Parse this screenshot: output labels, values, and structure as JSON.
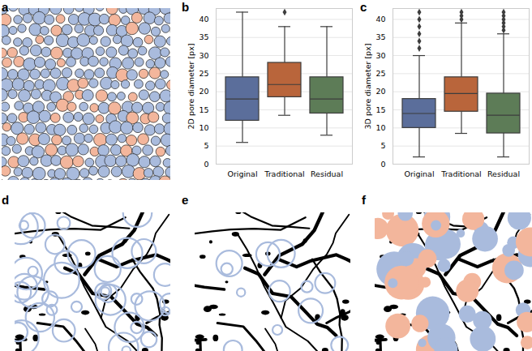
{
  "chart_data": [
    {
      "type": "boxplot",
      "panel": "b",
      "ylabel": "2D pore diameter [px]",
      "categories": [
        "Original",
        "Traditional",
        "Residual"
      ],
      "colors": [
        "#5b6e9b",
        "#b9653b",
        "#5d7c57"
      ],
      "min": [
        6,
        13.5,
        8
      ],
      "q1": [
        12,
        18.5,
        14
      ],
      "median": [
        18,
        22,
        18
      ],
      "q3": [
        24,
        28,
        24
      ],
      "max": [
        42,
        38,
        38
      ],
      "outliers": [
        [],
        [
          42
        ],
        []
      ],
      "ylim": [
        0,
        43
      ],
      "yticks": [
        0,
        5,
        10,
        15,
        20,
        25,
        30,
        35,
        40
      ],
      "grid": true
    },
    {
      "type": "boxplot",
      "panel": "c",
      "ylabel": "3D pore diameter [px]",
      "categories": [
        "Original",
        "Traditional",
        "Residual"
      ],
      "colors": [
        "#5b6e9b",
        "#b9653b",
        "#5d7c57"
      ],
      "min": [
        2,
        8.5,
        2
      ],
      "q1": [
        10,
        14.5,
        8.5
      ],
      "median": [
        14,
        19.5,
        13.5
      ],
      "q3": [
        18,
        24,
        19.5
      ],
      "max": [
        30,
        39,
        36
      ],
      "outliers": [
        [
          32,
          34,
          36,
          38,
          40,
          42
        ],
        [
          40,
          41,
          42
        ],
        [
          37,
          38,
          39,
          40,
          41,
          42
        ]
      ],
      "ylim": [
        0,
        43
      ],
      "yticks": [
        0,
        5,
        10,
        15,
        20,
        25,
        30,
        35,
        40
      ],
      "grid": true
    }
  ],
  "images": [
    {
      "panel": "a"
    },
    {
      "panel": "d"
    },
    {
      "panel": "e"
    },
    {
      "panel": "f"
    }
  ]
}
